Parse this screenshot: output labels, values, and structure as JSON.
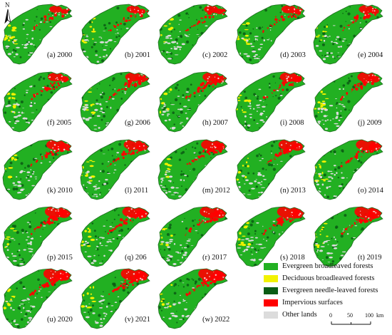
{
  "north_arrow": {
    "letter": "N"
  },
  "panels": [
    {
      "label": "(a) 2000"
    },
    {
      "label": "(b) 2001"
    },
    {
      "label": "(c) 2002"
    },
    {
      "label": "(d) 2003"
    },
    {
      "label": "(e) 2004"
    },
    {
      "label": "(f) 2005"
    },
    {
      "label": "(g) 2006"
    },
    {
      "label": "(h) 2007"
    },
    {
      "label": "(i) 2008"
    },
    {
      "label": "(j) 2009"
    },
    {
      "label": "(k) 2010"
    },
    {
      "label": "(l) 2011"
    },
    {
      "label": "(m) 2012"
    },
    {
      "label": "(n) 2013"
    },
    {
      "label": "(o) 2014"
    },
    {
      "label": "(p) 2015"
    },
    {
      "label": "(q) 206"
    },
    {
      "label": "(r) 2017"
    },
    {
      "label": "(s) 2018"
    },
    {
      "label": "(t) 2019"
    },
    {
      "label": "(u) 2020"
    },
    {
      "label": "(v) 2021"
    },
    {
      "label": "(w) 2022"
    }
  ],
  "legend": {
    "items": [
      {
        "label": "Evergreen broadleaved forests",
        "color": "#22b022"
      },
      {
        "label": "Deciduous broadleaved forests",
        "color": "#f2f200"
      },
      {
        "label": "Evergreen needle-leaved forests",
        "color": "#0a5c14"
      },
      {
        "label": "Impervious surfaces",
        "color": "#ff0000"
      },
      {
        "label": "Other lands",
        "color": "#dcdcdc"
      }
    ]
  },
  "scale_bar": {
    "ticks": [
      "0",
      "50",
      "100"
    ],
    "unit": "km"
  },
  "colors": {
    "boundary": "#1e6e1e",
    "evergreen_broadleaved": "#22b022",
    "deciduous_broadleaved": "#f2f200",
    "evergreen_needle": "#0a5c14",
    "impervious": "#ff0000",
    "other": "#dcdcdc"
  }
}
